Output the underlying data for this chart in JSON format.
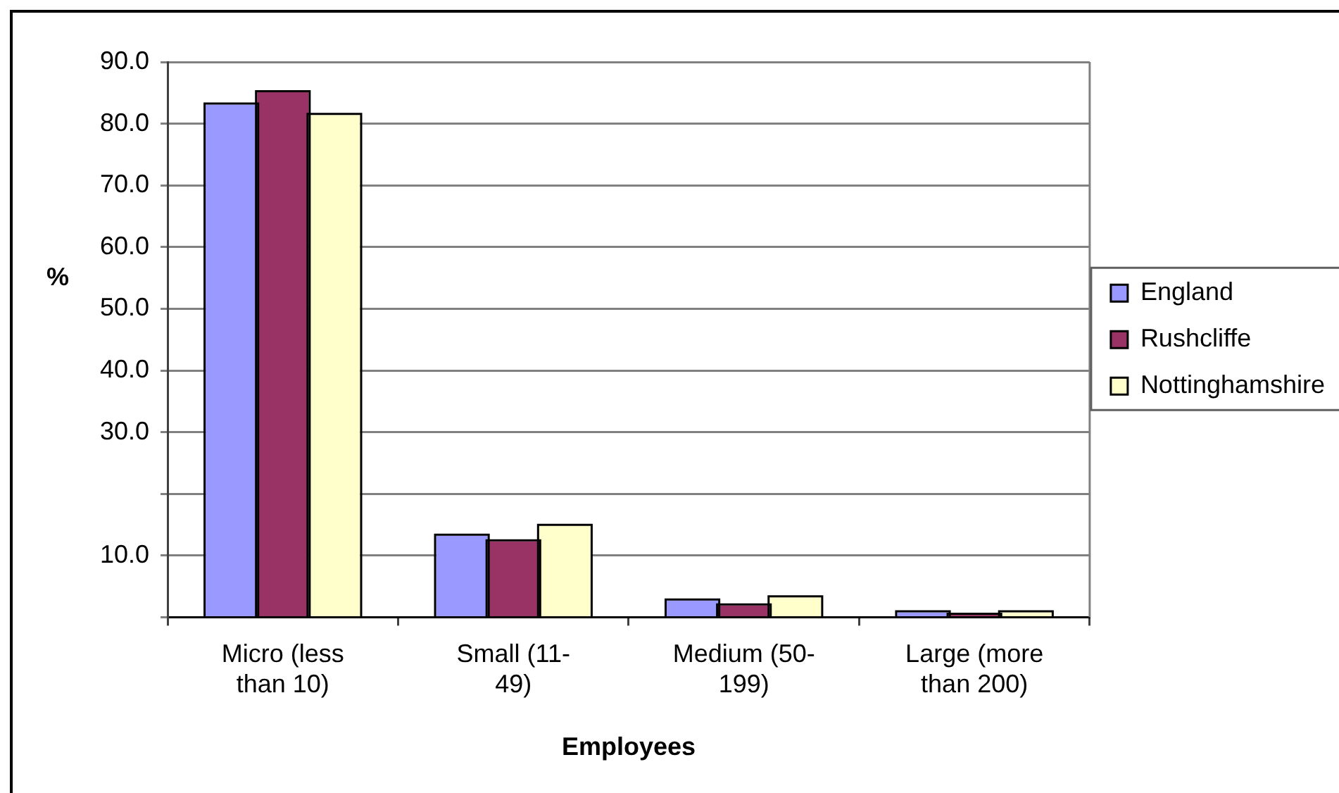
{
  "chart_data": {
    "type": "bar",
    "xlabel": "Employees",
    "ylabel": "%",
    "categories": [
      "Micro (less than 10)",
      "Small (11-49)",
      "Medium (50-199)",
      "Large (more than 200)"
    ],
    "series": [
      {
        "name": "England",
        "color": "#9999ff",
        "values": [
          83.1,
          13.2,
          2.7,
          0.8
        ]
      },
      {
        "name": "Rushcliffe",
        "color": "#993366",
        "values": [
          85.1,
          12.3,
          1.9,
          0.4
        ]
      },
      {
        "name": "Nottinghamshire",
        "color": "#ffffcc",
        "values": [
          81.4,
          14.8,
          3.2,
          0.8
        ]
      }
    ],
    "ylim": [
      0,
      90
    ],
    "yticks": [
      {
        "value": 0,
        "label": null
      },
      {
        "value": 10,
        "label": "10.0"
      },
      {
        "value": 20,
        "label": null
      },
      {
        "value": 30,
        "label": "30.0"
      },
      {
        "value": 40,
        "label": "40.0"
      },
      {
        "value": 50,
        "label": "50.0"
      },
      {
        "value": 60,
        "label": "60.0"
      },
      {
        "value": 70,
        "label": "70.0"
      },
      {
        "value": 80,
        "label": "80.0"
      },
      {
        "value": 90,
        "label": "90.0"
      }
    ],
    "grid": "y",
    "legend": "right"
  }
}
